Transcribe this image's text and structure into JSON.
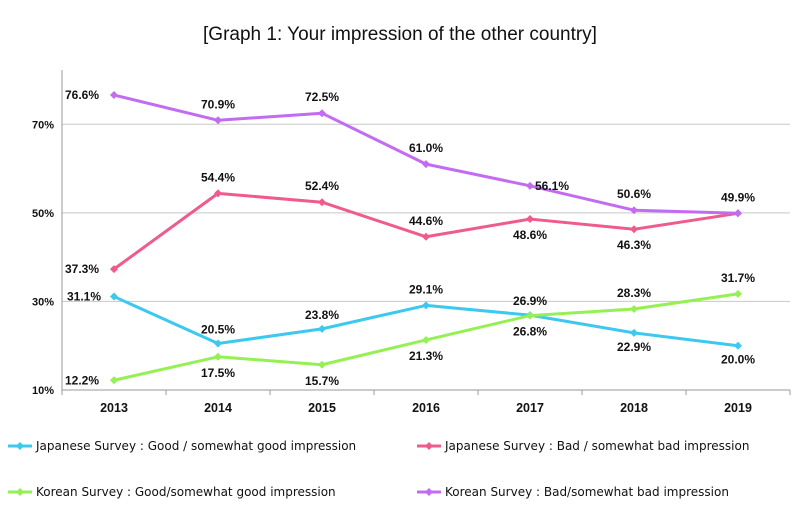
{
  "chart_data": {
    "type": "line",
    "title": "[Graph 1: Your impression of the other country]",
    "xlabel": "",
    "ylabel": "",
    "categories": [
      "2013",
      "2014",
      "2015",
      "2016",
      "2017",
      "2018",
      "2019"
    ],
    "y_ticks": [
      "10%",
      "30%",
      "50%",
      "70%"
    ],
    "ylim": [
      10,
      80
    ],
    "series": [
      {
        "name": "Japanese Survey : Good / somewhat good impression",
        "color": "#3cc8ef",
        "values": [
          31.1,
          20.5,
          23.8,
          29.1,
          26.9,
          22.9,
          20.0
        ],
        "labels": [
          "31.1%",
          "20.5%",
          "23.8%",
          "29.1%",
          "26.9%",
          "22.9%",
          "20.0%"
        ]
      },
      {
        "name": "Japanese Survey : Bad / somewhat bad impression",
        "color": "#ef5b8b",
        "values": [
          37.3,
          54.4,
          52.4,
          44.6,
          48.6,
          46.3,
          49.9
        ],
        "labels": [
          "37.3%",
          "54.4%",
          "52.4%",
          "44.6%",
          "48.6%",
          "46.3%",
          ""
        ]
      },
      {
        "name": "Korean Survey : Good/somewhat good impression",
        "color": "#95f053",
        "values": [
          12.2,
          17.5,
          15.7,
          21.3,
          26.8,
          28.3,
          31.7
        ],
        "labels": [
          "12.2%",
          "17.5%",
          "15.7%",
          "21.3%",
          "26.8%",
          "28.3%",
          "31.7%"
        ]
      },
      {
        "name": "Korean Survey : Bad/somewhat bad impression",
        "color": "#c16cf2",
        "values": [
          76.6,
          70.9,
          72.5,
          61.0,
          56.1,
          50.6,
          49.9
        ],
        "labels": [
          "76.6%",
          "70.9%",
          "72.5%",
          "61.0%",
          "56.1%",
          "50.6%",
          "49.9%"
        ]
      }
    ],
    "legend": "bottom",
    "grid": true
  }
}
